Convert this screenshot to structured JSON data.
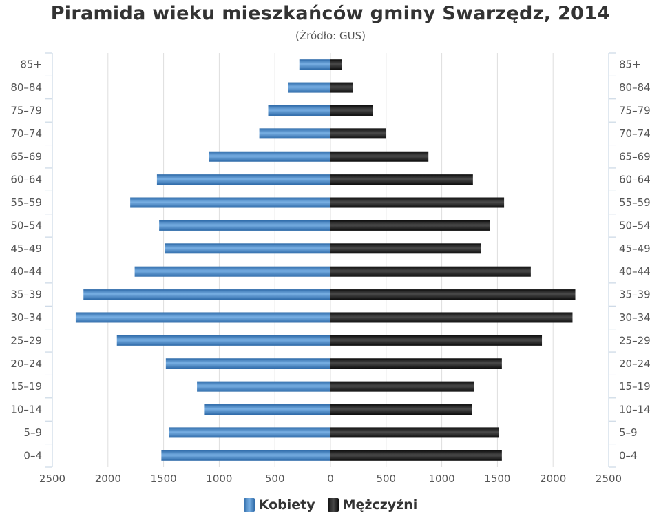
{
  "chart_data": {
    "type": "bar",
    "title": "Piramida wieku mieszkańców gminy Swarzędz, 2014",
    "subtitle": "(Źródło: GUS)",
    "categories": [
      "85+",
      "80–84",
      "75–79",
      "70–74",
      "65–69",
      "60–64",
      "55–59",
      "50–54",
      "45–49",
      "40–44",
      "35–39",
      "30–34",
      "25–29",
      "20–24",
      "15–19",
      "10–14",
      "5–9",
      "0–4"
    ],
    "series": [
      {
        "name": "Kobiety",
        "color": "#3f7fc0",
        "values": [
          280,
          380,
          560,
          640,
          1090,
          1560,
          1800,
          1540,
          1490,
          1760,
          2220,
          2290,
          1920,
          1480,
          1200,
          1130,
          1450,
          1520
        ]
      },
      {
        "name": "Mężczyźni",
        "color": "#1a1a1a",
        "values": [
          100,
          200,
          380,
          500,
          880,
          1280,
          1560,
          1430,
          1350,
          1800,
          2200,
          2175,
          1900,
          1540,
          1290,
          1270,
          1510,
          1540
        ]
      }
    ],
    "xaxis": {
      "ticks": [
        "2500",
        "2000",
        "1500",
        "1000",
        "500",
        "0",
        "500",
        "1000",
        "1500",
        "2000",
        "2500"
      ],
      "range": [
        -2500,
        2500
      ]
    },
    "grid": true,
    "legend_position": "bottom-center"
  }
}
